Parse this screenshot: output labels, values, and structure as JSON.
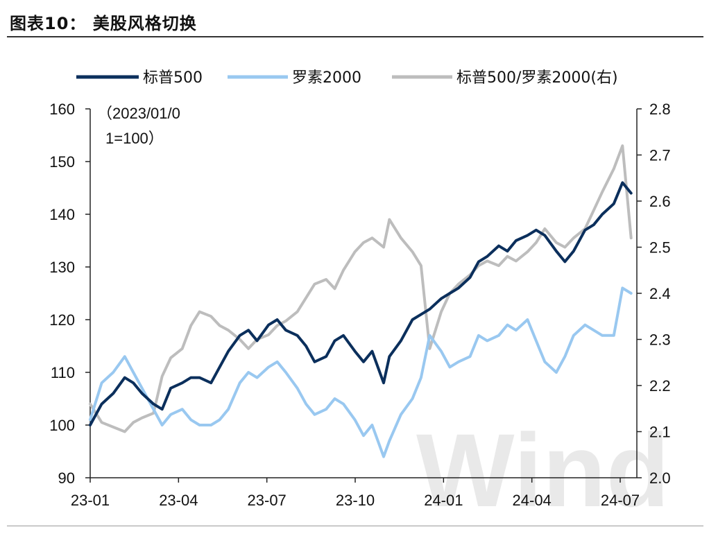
{
  "title": "图表10：  美股风格切换",
  "watermark": "Wind",
  "chart_data": {
    "type": "line",
    "title": "美股风格切换",
    "note": [
      "（2023/01/0",
      "1=100）"
    ],
    "x_ticks": [
      "23-01",
      "23-04",
      "23-07",
      "23-10",
      "24-01",
      "24-04",
      "24-07"
    ],
    "x_range": [
      0,
      19
    ],
    "y_left": {
      "range": [
        90,
        160
      ],
      "ticks": [
        "90",
        "100",
        "110",
        "120",
        "130",
        "140",
        "150",
        "160"
      ]
    },
    "y_right": {
      "range": [
        2.0,
        2.8
      ],
      "ticks": [
        "2.0",
        "2.1",
        "2.2",
        "2.3",
        "2.4",
        "2.5",
        "2.6",
        "2.7",
        "2.8"
      ]
    },
    "series": [
      {
        "name": "标普500",
        "axis": "left",
        "color": "#0b2f5c",
        "x": [
          0,
          0.4,
          0.8,
          1.2,
          1.5,
          1.8,
          2.2,
          2.5,
          2.8,
          3.2,
          3.5,
          3.8,
          4.2,
          4.5,
          4.8,
          5.2,
          5.5,
          5.8,
          6.2,
          6.5,
          6.8,
          7.2,
          7.5,
          7.8,
          8.2,
          8.5,
          8.8,
          9.2,
          9.5,
          9.8,
          10.2,
          10.4,
          10.8,
          11.2,
          11.5,
          11.8,
          12.2,
          12.5,
          12.8,
          13.2,
          13.5,
          13.8,
          14.2,
          14.5,
          14.8,
          15.2,
          15.5,
          15.8,
          16.2,
          16.5,
          16.8,
          17.2,
          17.5,
          17.8,
          18.2,
          18.5,
          18.8
        ],
        "values": [
          100,
          104,
          106,
          109,
          108,
          106,
          104,
          103,
          107,
          108,
          109,
          109,
          108,
          111,
          114,
          117,
          118,
          116,
          119,
          120,
          118,
          117,
          115,
          112,
          113,
          116,
          117,
          114,
          112,
          114,
          108,
          113,
          116,
          120,
          121,
          122,
          124,
          125,
          126,
          128,
          131,
          132,
          134,
          133,
          135,
          136,
          137,
          136,
          133,
          131,
          133,
          137,
          138,
          140,
          142,
          146,
          144
        ]
      },
      {
        "name": "罗素2000",
        "axis": "left",
        "color": "#99c8f0",
        "x": [
          0,
          0.4,
          0.8,
          1.2,
          1.5,
          1.8,
          2.2,
          2.5,
          2.8,
          3.2,
          3.5,
          3.8,
          4.2,
          4.5,
          4.8,
          5.2,
          5.5,
          5.8,
          6.2,
          6.5,
          6.8,
          7.2,
          7.5,
          7.8,
          8.2,
          8.5,
          8.8,
          9.2,
          9.5,
          9.8,
          10.2,
          10.4,
          10.8,
          11.2,
          11.5,
          11.8,
          12.2,
          12.5,
          12.8,
          13.2,
          13.5,
          13.8,
          14.2,
          14.5,
          14.8,
          15.2,
          15.5,
          15.8,
          16.2,
          16.5,
          16.8,
          17.2,
          17.5,
          17.8,
          18.2,
          18.5,
          18.8
        ],
        "values": [
          101,
          108,
          110,
          113,
          110,
          107,
          103,
          100,
          102,
          103,
          101,
          100,
          100,
          101,
          103,
          108,
          110,
          109,
          111,
          112,
          110,
          107,
          104,
          102,
          103,
          105,
          104,
          101,
          98,
          100,
          94,
          97,
          102,
          105,
          109,
          117,
          114,
          111,
          112,
          113,
          117,
          116,
          117,
          119,
          118,
          120,
          116,
          112,
          110,
          113,
          117,
          119,
          118,
          117,
          117,
          126,
          125
        ]
      },
      {
        "name": "标普500/罗素2000(右)",
        "axis": "right",
        "color": "#bdbdbd",
        "x": [
          0,
          0.4,
          0.8,
          1.2,
          1.5,
          1.8,
          2.2,
          2.5,
          2.8,
          3.2,
          3.5,
          3.8,
          4.2,
          4.5,
          4.8,
          5.2,
          5.5,
          5.8,
          6.2,
          6.5,
          6.8,
          7.2,
          7.5,
          7.8,
          8.2,
          8.5,
          8.8,
          9.2,
          9.5,
          9.8,
          10.2,
          10.4,
          10.8,
          11.2,
          11.5,
          11.8,
          12.2,
          12.5,
          12.8,
          13.2,
          13.5,
          13.8,
          14.2,
          14.5,
          14.8,
          15.2,
          15.5,
          15.8,
          16.2,
          16.5,
          16.8,
          17.2,
          17.5,
          17.8,
          18.2,
          18.5,
          18.8
        ],
        "values": [
          2.16,
          2.12,
          2.11,
          2.1,
          2.12,
          2.13,
          2.14,
          2.22,
          2.26,
          2.28,
          2.33,
          2.36,
          2.35,
          2.33,
          2.32,
          2.3,
          2.28,
          2.3,
          2.31,
          2.33,
          2.34,
          2.36,
          2.39,
          2.42,
          2.43,
          2.41,
          2.45,
          2.49,
          2.51,
          2.52,
          2.5,
          2.56,
          2.52,
          2.49,
          2.46,
          2.28,
          2.36,
          2.4,
          2.42,
          2.44,
          2.46,
          2.47,
          2.46,
          2.48,
          2.47,
          2.49,
          2.51,
          2.54,
          2.51,
          2.5,
          2.52,
          2.54,
          2.58,
          2.62,
          2.67,
          2.72,
          2.52
        ]
      }
    ]
  }
}
